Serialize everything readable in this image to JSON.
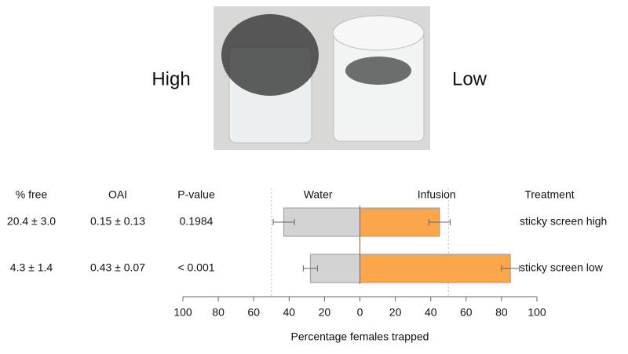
{
  "photo": {
    "labels": [
      "High",
      "Low"
    ]
  },
  "table": {
    "headers": [
      "% free",
      "OAI",
      "P-value"
    ],
    "rows": [
      [
        "20.4 ± 3.0",
        "0.15 ± 0.13",
        "0.1984"
      ],
      [
        "4.3 ± 1.4",
        "0.43 ± 0.07",
        "< 0.001"
      ]
    ]
  },
  "chart_data": {
    "type": "bar",
    "orientation": "horizontal",
    "xlabel": "Percentage females trapped",
    "category_label": "Treatment",
    "categories": [
      "sticky screen high",
      "sticky screen low"
    ],
    "series": [
      {
        "name": "Water",
        "color": "#d3d3d3",
        "values": [
          -43,
          -28
        ],
        "errors": [
          6,
          4
        ]
      },
      {
        "name": "Infusion",
        "color": "#fba64a",
        "values": [
          45,
          85
        ],
        "errors": [
          6,
          5
        ]
      }
    ],
    "xlim": [
      -100,
      100
    ],
    "xticks": [
      {
        "value": -100,
        "label": "100"
      },
      {
        "value": -80,
        "label": "80"
      },
      {
        "value": -60,
        "label": "60"
      },
      {
        "value": -40,
        "label": "40"
      },
      {
        "value": -20,
        "label": "20"
      },
      0,
      20,
      40,
      60,
      80,
      100
    ],
    "reference_lines": [
      -50,
      50
    ],
    "grid": false
  }
}
